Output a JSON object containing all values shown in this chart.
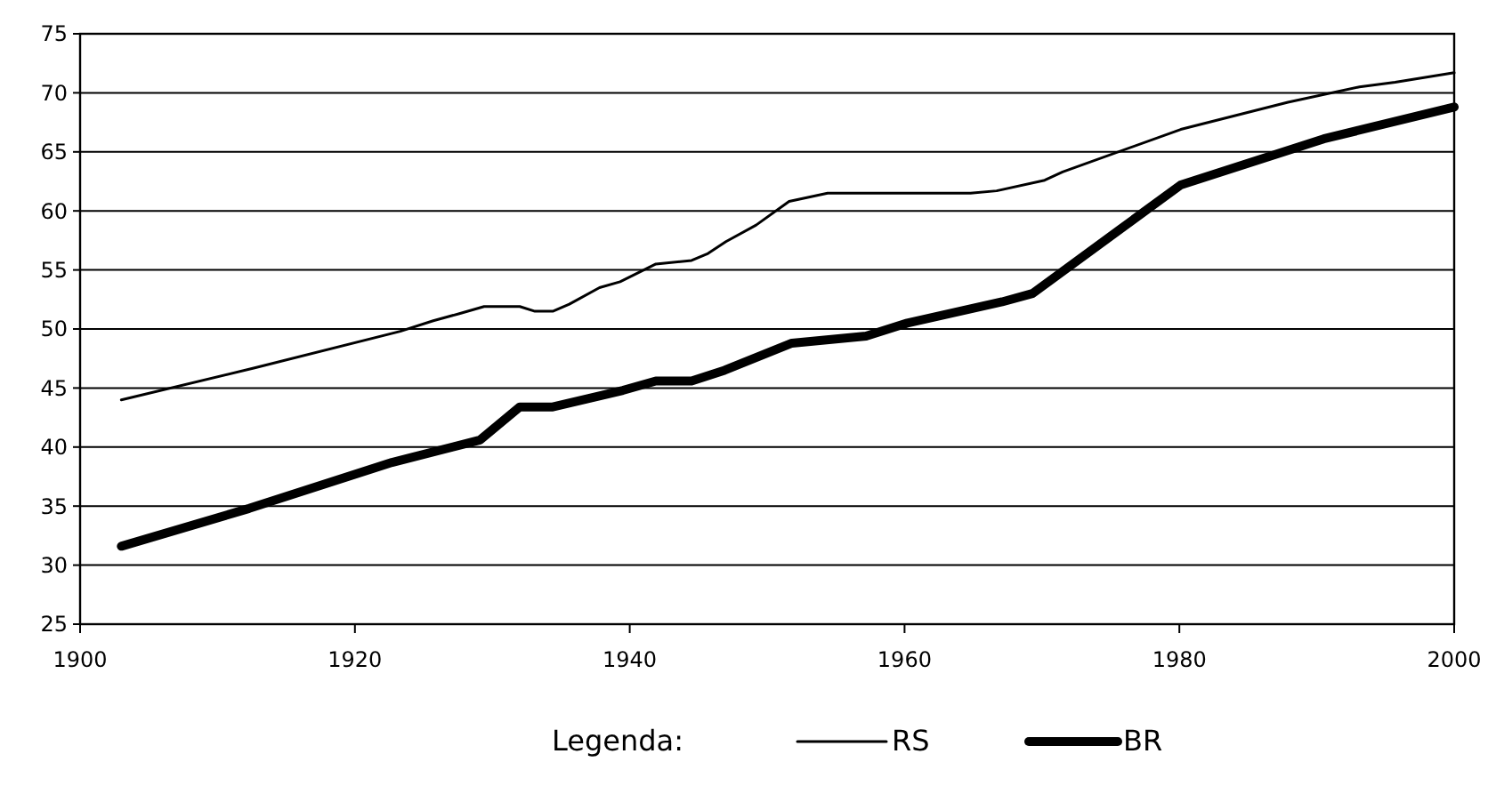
{
  "chart_data": {
    "type": "line",
    "legend_title": "Legenda:",
    "legend": "bottom",
    "grid": "y",
    "marker": "none",
    "line_style": "solid",
    "xlim": [
      1900,
      2000
    ],
    "xticks": [
      1900,
      1920,
      1940,
      1960,
      1980,
      2000
    ],
    "ylim": [
      25,
      75
    ],
    "yticks": [
      25,
      30,
      35,
      40,
      45,
      50,
      55,
      60,
      65,
      70,
      75
    ],
    "series": [
      {
        "name": "RS",
        "color": "#000000",
        "x": [
          1903,
          1912.7,
          1923.3,
          1925.7,
          1927.6,
          1929.4,
          1932,
          1933.1,
          1934.4,
          1935.6,
          1937.8,
          1939.3,
          1941.9,
          1944.5,
          1945.7,
          1947,
          1949.2,
          1951.6,
          1954.4,
          1964.8,
          1966.7,
          1970.2,
          1971.5,
          1980.1,
          1987.9,
          1993.1,
          1995.7,
          2000
        ],
        "values": [
          44.0,
          46.7,
          49.8,
          50.7,
          51.3,
          51.9,
          51.9,
          51.5,
          51.5,
          52.1,
          53.5,
          54.0,
          55.5,
          55.8,
          56.4,
          57.4,
          58.8,
          60.8,
          61.5,
          61.5,
          61.7,
          62.6,
          63.3,
          66.9,
          69.2,
          70.5,
          70.9,
          71.7
        ]
      },
      {
        "name": "BR",
        "color": "#000000",
        "x": [
          1903,
          1912.3,
          1922.7,
          1929.1,
          1932,
          1934.4,
          1939.5,
          1941.9,
          1944.5,
          1946.9,
          1951.8,
          1957.2,
          1960.2,
          1967.1,
          1969.3,
          1980.1,
          1990.5,
          2000
        ],
        "values": [
          31.6,
          34.8,
          38.7,
          40.6,
          43.4,
          43.4,
          44.8,
          45.6,
          45.6,
          46.5,
          48.8,
          49.4,
          50.5,
          52.3,
          53.0,
          62.2,
          66.1,
          68.8
        ]
      }
    ]
  }
}
